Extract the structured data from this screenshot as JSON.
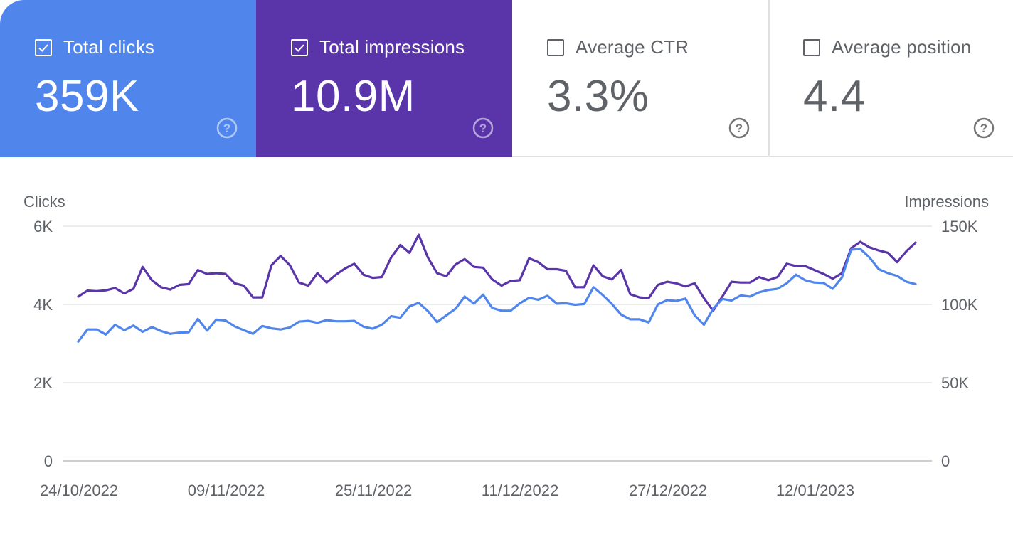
{
  "metrics": {
    "clicks": {
      "label": "Total clicks",
      "value": "359K",
      "checked": true,
      "color": "#5086ec"
    },
    "impressions": {
      "label": "Total impressions",
      "value": "10.9M",
      "checked": true,
      "color": "#5a35aa"
    },
    "ctr": {
      "label": "Average CTR",
      "value": "3.3%",
      "checked": false
    },
    "position": {
      "label": "Average position",
      "value": "4.4",
      "checked": false
    }
  },
  "icons": {
    "checkbox": "checkbox-checked-icon",
    "help": "help-circle-icon"
  },
  "chart_data": {
    "type": "line",
    "left_axis": {
      "title": "Clicks",
      "ticks": [
        "0",
        "2K",
        "4K",
        "6K"
      ],
      "range": [
        0,
        6000
      ]
    },
    "right_axis": {
      "title": "Impressions",
      "ticks": [
        "0",
        "50K",
        "100K",
        "150K"
      ],
      "range": [
        0,
        150000
      ]
    },
    "x_tick_labels": [
      "24/10/2022",
      "09/11/2022",
      "25/11/2022",
      "11/12/2022",
      "27/12/2022",
      "12/01/2023"
    ],
    "x_start": "24/10/2022",
    "x_end": "24/01/2023",
    "grid": true,
    "series": [
      {
        "name": "Total impressions",
        "axis": "right",
        "color": "#5a35aa",
        "values": [
          105000,
          108800,
          108500,
          109000,
          110500,
          107000,
          110000,
          124000,
          115500,
          111000,
          109500,
          112500,
          113000,
          122000,
          119500,
          120000,
          119500,
          113500,
          112000,
          104500,
          104500,
          125000,
          131000,
          125000,
          114000,
          112000,
          120000,
          114000,
          119000,
          123000,
          126000,
          119000,
          117000,
          117500,
          130000,
          138000,
          133000,
          144500,
          130000,
          120000,
          118000,
          125500,
          129000,
          124000,
          123500,
          116000,
          112000,
          115000,
          115500,
          129500,
          127000,
          122500,
          122500,
          121500,
          111000,
          111000,
          125000,
          118000,
          116000,
          122000,
          106500,
          104500,
          104000,
          112500,
          114500,
          113500,
          111500,
          113500,
          104000,
          96000,
          105000,
          114500,
          114000,
          114000,
          117500,
          115500,
          117500,
          126000,
          124500,
          124500,
          122000,
          119500,
          116500,
          120000,
          136000,
          140000,
          136500,
          134500,
          133000,
          127000,
          134000,
          139500
        ]
      },
      {
        "name": "Total clicks",
        "axis": "left",
        "color": "#5086ec",
        "values": [
          3050,
          3360,
          3360,
          3230,
          3480,
          3340,
          3460,
          3300,
          3420,
          3320,
          3250,
          3280,
          3290,
          3630,
          3330,
          3610,
          3590,
          3440,
          3340,
          3250,
          3450,
          3390,
          3360,
          3410,
          3560,
          3580,
          3530,
          3600,
          3570,
          3570,
          3580,
          3430,
          3380,
          3480,
          3700,
          3660,
          3950,
          4040,
          3830,
          3550,
          3720,
          3890,
          4200,
          4020,
          4250,
          3910,
          3840,
          3840,
          4030,
          4170,
          4120,
          4220,
          4020,
          4030,
          3990,
          4010,
          4440,
          4240,
          4010,
          3740,
          3620,
          3620,
          3540,
          4000,
          4110,
          4090,
          4150,
          3720,
          3480,
          3890,
          4140,
          4100,
          4230,
          4200,
          4310,
          4370,
          4400,
          4540,
          4760,
          4620,
          4560,
          4550,
          4400,
          4690,
          5400,
          5420,
          5200,
          4900,
          4800,
          4730,
          4580,
          4520
        ]
      }
    ]
  }
}
